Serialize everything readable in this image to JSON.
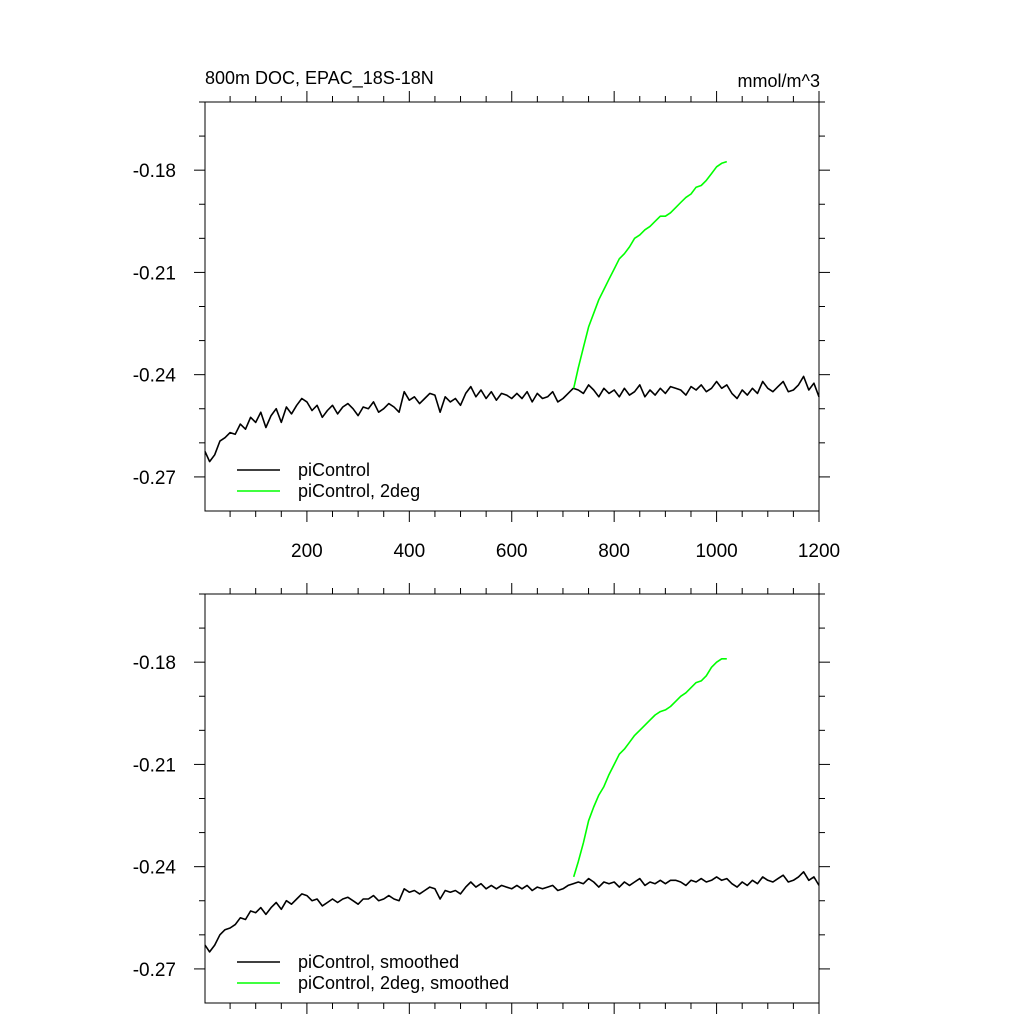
{
  "chart_data": [
    {
      "type": "line",
      "title": "800m DOC, EPAC_18S-18N",
      "units": "mmol/m^3",
      "xlim": [
        1,
        1200
      ],
      "ylim": [
        -0.28,
        -0.16
      ],
      "x_ticks": [
        200,
        400,
        600,
        800,
        1000,
        1200
      ],
      "x_tick_labels": [
        "200",
        "400",
        "600",
        "800",
        "1000",
        "1200"
      ],
      "y_ticks": [
        -0.18,
        -0.21,
        -0.24,
        -0.27
      ],
      "y_tick_labels": [
        "-0.18",
        "-0.21",
        "-0.24",
        "-0.27"
      ],
      "legend_position": "bottom-left",
      "series": [
        {
          "name": "piControl",
          "color": "#000000",
          "x": [
            1,
            10,
            20,
            30,
            40,
            50,
            60,
            70,
            80,
            90,
            100,
            110,
            120,
            130,
            140,
            150,
            160,
            170,
            180,
            190,
            200,
            210,
            220,
            230,
            240,
            250,
            260,
            270,
            280,
            290,
            300,
            310,
            320,
            330,
            340,
            350,
            360,
            370,
            380,
            390,
            400,
            410,
            420,
            430,
            440,
            450,
            460,
            470,
            480,
            490,
            500,
            510,
            520,
            530,
            540,
            550,
            560,
            570,
            580,
            590,
            600,
            610,
            620,
            630,
            640,
            650,
            660,
            670,
            680,
            690,
            700,
            710,
            720,
            730,
            740,
            750,
            760,
            770,
            780,
            790,
            800,
            810,
            820,
            830,
            840,
            850,
            860,
            870,
            880,
            890,
            900,
            910,
            920,
            930,
            940,
            950,
            960,
            970,
            980,
            990,
            1000,
            1010,
            1020,
            1030,
            1040,
            1050,
            1060,
            1070,
            1080,
            1090,
            1100,
            1110,
            1120,
            1130,
            1140,
            1150,
            1160,
            1170,
            1180,
            1190,
            1200
          ],
          "y": [
            -0.2625,
            -0.2655,
            -0.2635,
            -0.2595,
            -0.2585,
            -0.257,
            -0.2575,
            -0.2545,
            -0.256,
            -0.2525,
            -0.254,
            -0.251,
            -0.2555,
            -0.252,
            -0.25,
            -0.254,
            -0.2495,
            -0.2515,
            -0.249,
            -0.247,
            -0.248,
            -0.2505,
            -0.249,
            -0.2525,
            -0.2505,
            -0.249,
            -0.2515,
            -0.2495,
            -0.2485,
            -0.25,
            -0.252,
            -0.2495,
            -0.25,
            -0.248,
            -0.251,
            -0.25,
            -0.2485,
            -0.2495,
            -0.251,
            -0.245,
            -0.2475,
            -0.2465,
            -0.2485,
            -0.247,
            -0.2455,
            -0.246,
            -0.251,
            -0.2465,
            -0.248,
            -0.247,
            -0.249,
            -0.2455,
            -0.2435,
            -0.2465,
            -0.2445,
            -0.247,
            -0.245,
            -0.2475,
            -0.2455,
            -0.246,
            -0.247,
            -0.2455,
            -0.247,
            -0.245,
            -0.248,
            -0.2455,
            -0.247,
            -0.2465,
            -0.245,
            -0.248,
            -0.247,
            -0.2455,
            -0.244,
            -0.2445,
            -0.2455,
            -0.243,
            -0.2445,
            -0.2465,
            -0.244,
            -0.2455,
            -0.2445,
            -0.2465,
            -0.244,
            -0.246,
            -0.245,
            -0.243,
            -0.2465,
            -0.2445,
            -0.246,
            -0.244,
            -0.2455,
            -0.2435,
            -0.244,
            -0.2445,
            -0.246,
            -0.2435,
            -0.2445,
            -0.243,
            -0.245,
            -0.244,
            -0.242,
            -0.244,
            -0.243,
            -0.2455,
            -0.247,
            -0.2445,
            -0.246,
            -0.244,
            -0.2455,
            -0.242,
            -0.244,
            -0.245,
            -0.2435,
            -0.242,
            -0.245,
            -0.2445,
            -0.243,
            -0.2405,
            -0.2445,
            -0.2425,
            -0.2465
          ]
        },
        {
          "name": "piControl, 2deg",
          "color": "#00ff00",
          "x": [
            721,
            730,
            740,
            750,
            760,
            770,
            780,
            790,
            800,
            810,
            820,
            830,
            840,
            850,
            860,
            870,
            880,
            890,
            900,
            910,
            920,
            930,
            940,
            950,
            960,
            970,
            980,
            990,
            1000,
            1010,
            1020
          ],
          "y": [
            -0.244,
            -0.238,
            -0.232,
            -0.226,
            -0.222,
            -0.218,
            -0.215,
            -0.212,
            -0.209,
            -0.206,
            -0.2045,
            -0.2025,
            -0.2,
            -0.199,
            -0.1975,
            -0.1965,
            -0.195,
            -0.1935,
            -0.1935,
            -0.1925,
            -0.191,
            -0.1895,
            -0.188,
            -0.187,
            -0.185,
            -0.1845,
            -0.183,
            -0.181,
            -0.179,
            -0.178,
            -0.1775
          ]
        }
      ]
    },
    {
      "type": "line",
      "xlim": [
        1,
        1200
      ],
      "ylim": [
        -0.28,
        -0.16
      ],
      "y_ticks": [
        -0.18,
        -0.21,
        -0.24,
        -0.27
      ],
      "y_tick_labels": [
        "-0.18",
        "-0.21",
        "-0.24",
        "-0.27"
      ],
      "legend_position": "bottom-left",
      "series": [
        {
          "name": "piControl, smoothed",
          "color": "#000000",
          "x": [
            1,
            10,
            20,
            30,
            40,
            50,
            60,
            70,
            80,
            90,
            100,
            110,
            120,
            130,
            140,
            150,
            160,
            170,
            180,
            190,
            200,
            210,
            220,
            230,
            240,
            250,
            260,
            270,
            280,
            290,
            300,
            310,
            320,
            330,
            340,
            350,
            360,
            370,
            380,
            390,
            400,
            410,
            420,
            430,
            440,
            450,
            460,
            470,
            480,
            490,
            500,
            510,
            520,
            530,
            540,
            550,
            560,
            570,
            580,
            590,
            600,
            610,
            620,
            630,
            640,
            650,
            660,
            670,
            680,
            690,
            700,
            710,
            720,
            730,
            740,
            750,
            760,
            770,
            780,
            790,
            800,
            810,
            820,
            830,
            840,
            850,
            860,
            870,
            880,
            890,
            900,
            910,
            920,
            930,
            940,
            950,
            960,
            970,
            980,
            990,
            1000,
            1010,
            1020,
            1030,
            1040,
            1050,
            1060,
            1070,
            1080,
            1090,
            1100,
            1110,
            1120,
            1130,
            1140,
            1150,
            1160,
            1170,
            1180,
            1190,
            1200
          ],
          "y": [
            -0.263,
            -0.265,
            -0.263,
            -0.26,
            -0.2585,
            -0.258,
            -0.257,
            -0.255,
            -0.2555,
            -0.253,
            -0.2535,
            -0.252,
            -0.254,
            -0.252,
            -0.2505,
            -0.2525,
            -0.25,
            -0.251,
            -0.2495,
            -0.248,
            -0.2485,
            -0.25,
            -0.2495,
            -0.2515,
            -0.2505,
            -0.2495,
            -0.2505,
            -0.2495,
            -0.249,
            -0.25,
            -0.251,
            -0.2495,
            -0.2495,
            -0.2485,
            -0.25,
            -0.2495,
            -0.2485,
            -0.2495,
            -0.25,
            -0.2465,
            -0.2475,
            -0.247,
            -0.248,
            -0.247,
            -0.246,
            -0.2465,
            -0.2495,
            -0.247,
            -0.2475,
            -0.247,
            -0.248,
            -0.246,
            -0.2445,
            -0.246,
            -0.245,
            -0.2465,
            -0.2455,
            -0.2465,
            -0.2455,
            -0.246,
            -0.2465,
            -0.2455,
            -0.2465,
            -0.2455,
            -0.247,
            -0.246,
            -0.2465,
            -0.246,
            -0.2455,
            -0.247,
            -0.2465,
            -0.2455,
            -0.245,
            -0.2445,
            -0.245,
            -0.2435,
            -0.2445,
            -0.246,
            -0.2445,
            -0.245,
            -0.2445,
            -0.246,
            -0.2445,
            -0.2455,
            -0.2445,
            -0.2435,
            -0.2455,
            -0.2445,
            -0.245,
            -0.244,
            -0.245,
            -0.244,
            -0.244,
            -0.2445,
            -0.2455,
            -0.244,
            -0.2445,
            -0.2435,
            -0.2445,
            -0.244,
            -0.243,
            -0.244,
            -0.2435,
            -0.245,
            -0.246,
            -0.2445,
            -0.2455,
            -0.244,
            -0.245,
            -0.243,
            -0.244,
            -0.2445,
            -0.2435,
            -0.2425,
            -0.2445,
            -0.244,
            -0.243,
            -0.2415,
            -0.244,
            -0.243,
            -0.2455
          ]
        },
        {
          "name": "piControl, 2deg, smoothed",
          "color": "#00ff00",
          "x": [
            721,
            730,
            740,
            750,
            760,
            770,
            780,
            790,
            800,
            810,
            820,
            830,
            840,
            850,
            860,
            870,
            880,
            890,
            900,
            910,
            920,
            930,
            940,
            950,
            960,
            970,
            980,
            990,
            1000,
            1010,
            1020
          ],
          "y": [
            -0.243,
            -0.2385,
            -0.233,
            -0.2265,
            -0.2225,
            -0.219,
            -0.2165,
            -0.213,
            -0.21,
            -0.207,
            -0.2055,
            -0.2035,
            -0.2015,
            -0.2,
            -0.1985,
            -0.197,
            -0.1955,
            -0.1945,
            -0.194,
            -0.193,
            -0.1915,
            -0.19,
            -0.189,
            -0.1875,
            -0.186,
            -0.1855,
            -0.184,
            -0.1815,
            -0.18,
            -0.179,
            -0.179
          ]
        }
      ]
    }
  ]
}
